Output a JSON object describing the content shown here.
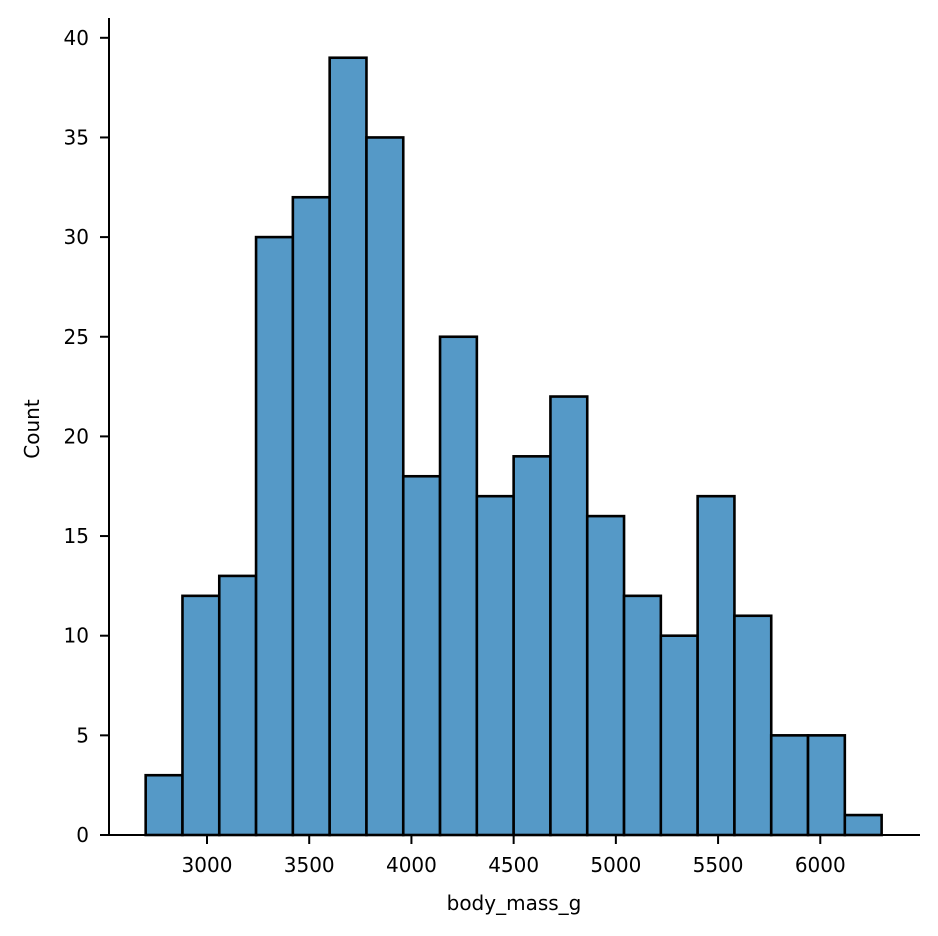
{
  "chart_data": {
    "type": "bar",
    "subtype": "histogram",
    "title": "",
    "xlabel": "body_mass_g",
    "ylabel": "Count",
    "bin_edges": [
      2700,
      2880,
      3060,
      3240,
      3420,
      3600,
      3780,
      3960,
      4140,
      4320,
      4500,
      4680,
      4860,
      5040,
      5220,
      5400,
      5580,
      5760,
      5940,
      6120,
      6300
    ],
    "values": [
      3,
      12,
      13,
      30,
      32,
      39,
      35,
      18,
      25,
      17,
      19,
      22,
      16,
      12,
      10,
      17,
      11,
      5,
      5,
      1
    ],
    "xlim": [
      2610,
      6390
    ],
    "ylim": [
      0,
      40.95
    ],
    "x_ticks": [
      3000,
      3500,
      4000,
      4500,
      5000,
      5500,
      6000
    ],
    "x_tick_labels": [
      "3000",
      "3500",
      "4000",
      "4500",
      "5000",
      "5500",
      "6000"
    ],
    "y_ticks": [
      0,
      5,
      10,
      15,
      20,
      25,
      30,
      35,
      40
    ],
    "y_tick_labels": [
      "0",
      "5",
      "10",
      "15",
      "20",
      "25",
      "30",
      "35",
      "40"
    ],
    "grid": false,
    "legend": null,
    "colors": {
      "bar_fill": "#5599c7",
      "bar_edge": "#000000",
      "axis": "#000000"
    }
  }
}
